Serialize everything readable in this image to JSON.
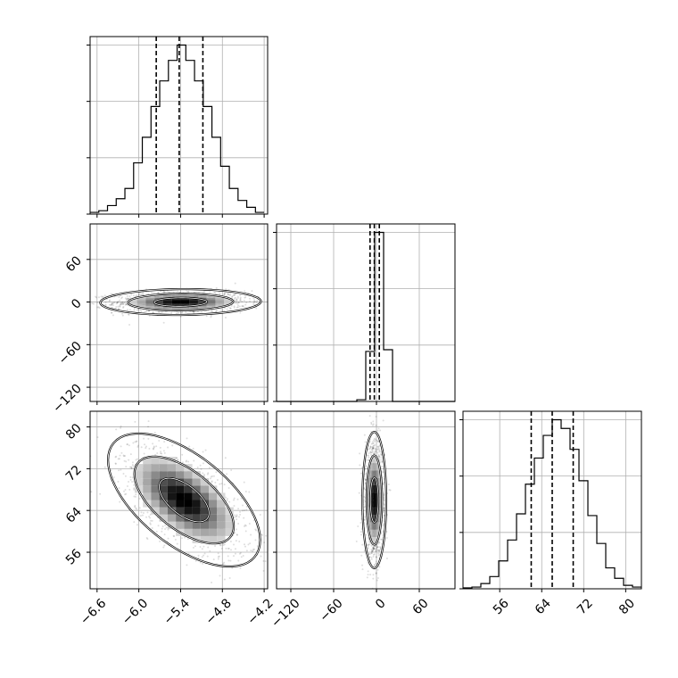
{
  "chart_data": {
    "type": "corner",
    "grid": true,
    "variables": [
      {
        "range": [
          -6.7,
          -4.15
        ],
        "ticks": [
          -6.6,
          -6.0,
          -5.4,
          -4.8,
          -4.2
        ],
        "tick_labels": [
          "−6.6",
          "−6.0",
          "−5.4",
          "−4.8",
          "−4.2"
        ],
        "quantiles": [
          -5.75,
          -5.42,
          -5.08
        ]
      },
      {
        "range": [
          -140,
          110
        ],
        "ticks": [
          -120,
          -60,
          0,
          60
        ],
        "tick_labels": [
          "−120",
          "−60",
          "0",
          "60"
        ],
        "quantiles": [
          -9,
          -3,
          4
        ]
      },
      {
        "range": [
          49,
          83
        ],
        "ticks": [
          56,
          64,
          72,
          80
        ],
        "tick_labels": [
          "56",
          "64",
          "72",
          "80"
        ],
        "quantiles": [
          62,
          66,
          70
        ]
      }
    ],
    "marginals": [
      {
        "bin_edges": [
          -6.7,
          -6.575,
          -6.45,
          -6.325,
          -6.2,
          -6.075,
          -5.95,
          -5.825,
          -5.7,
          -5.575,
          -5.45,
          -5.325,
          -5.2,
          -5.075,
          -4.95,
          -4.825,
          -4.7,
          -4.575,
          -4.45,
          -4.325,
          -4.2
        ],
        "counts": [
          1,
          2,
          5,
          9,
          15,
          30,
          45,
          63,
          78,
          90,
          99,
          90,
          78,
          63,
          45,
          28,
          15,
          8,
          4,
          1
        ]
      },
      {
        "bin_edges": [
          -140,
          -127.5,
          -115,
          -102.5,
          -90,
          -77.5,
          -65,
          -52.5,
          -40,
          -27.5,
          -15,
          -2.5,
          10,
          22.5,
          35,
          47.5,
          60,
          72.5,
          85,
          97.5,
          110
        ],
        "counts": [
          0,
          0,
          0,
          0,
          0,
          0,
          0,
          0,
          0,
          1,
          29,
          98,
          30,
          0,
          0,
          0,
          0,
          0,
          0,
          0
        ]
      },
      {
        "bin_edges": [
          49,
          50.7,
          52.4,
          54.1,
          55.8,
          57.5,
          59.2,
          60.9,
          62.6,
          64.3,
          66,
          67.7,
          69.4,
          71.1,
          72.8,
          74.5,
          76.2,
          77.9,
          79.6,
          81.3,
          83
        ],
        "counts": [
          0.5,
          1,
          3,
          7,
          16,
          28,
          43,
          60,
          75,
          88,
          97,
          92,
          80,
          62,
          42,
          26,
          12,
          6,
          2,
          1
        ]
      }
    ],
    "pairs": [
      {
        "x_var": 0,
        "y_var": 1,
        "center": [
          -5.4,
          0
        ],
        "sigma": [
          0.38,
          6
        ],
        "rho": 0.05,
        "levels": [
          0.39,
          0.86,
          0.99
        ]
      },
      {
        "x_var": 0,
        "y_var": 2,
        "center": [
          -5.35,
          66
        ],
        "sigma": [
          0.36,
          4.2
        ],
        "rho": -0.6,
        "levels": [
          0.39,
          0.86,
          0.99
        ]
      },
      {
        "x_var": 1,
        "y_var": 2,
        "center": [
          -3,
          66
        ],
        "sigma": [
          5.5,
          4.3
        ],
        "rho": 0.0,
        "levels": [
          0.39,
          0.86,
          0.99
        ]
      }
    ]
  }
}
